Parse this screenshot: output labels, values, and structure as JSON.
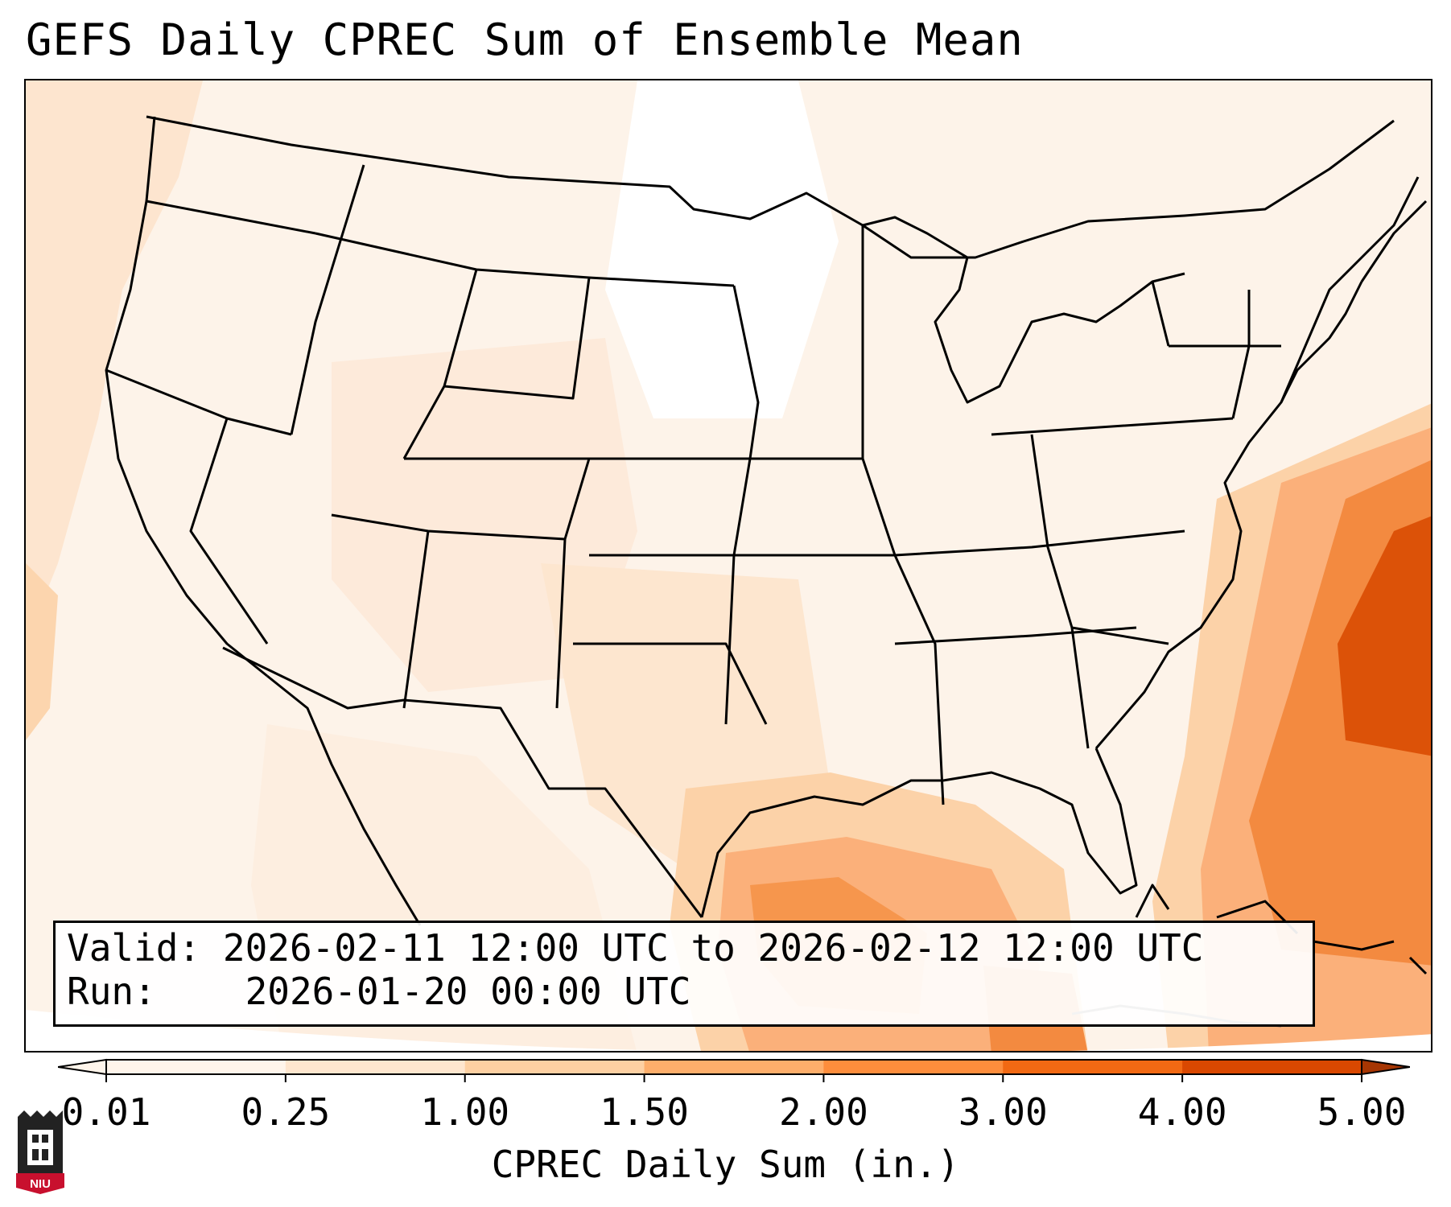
{
  "title": "GEFS Daily CPREC Sum of Ensemble Mean",
  "info": {
    "valid_label": "Valid:",
    "valid_value": "2026-02-11 12:00 UTC to 2026-02-12 12:00 UTC",
    "run_label": "Run:",
    "run_value": "2026-01-20 00:00 UTC"
  },
  "colorbar": {
    "label": "CPREC Daily Sum (in.)",
    "ticks": [
      "0.01",
      "0.25",
      "1.00",
      "1.50",
      "2.00",
      "3.00",
      "4.00",
      "5.00"
    ],
    "colors": [
      "#fff5eb",
      "#fee6ce",
      "#fdd0a2",
      "#fdae6b",
      "#fd8d3c",
      "#f16913",
      "#d94801",
      "#a63603"
    ]
  },
  "logo": {
    "text": "NIU",
    "icon": "university-tower-icon",
    "colors": {
      "red": "#c8102e",
      "dark": "#222222"
    }
  },
  "map": {
    "region": "continental-united-states",
    "overlays": [
      "state-boundaries",
      "coastlines",
      "country-borders"
    ],
    "shading_colors": {
      "lightest": "#fef5ec",
      "light": "#fde6d0",
      "medium": "#fcd2a8",
      "moderate": "#fbb07a",
      "heavy": "#f38a40",
      "heaviest": "#dc5208"
    }
  }
}
